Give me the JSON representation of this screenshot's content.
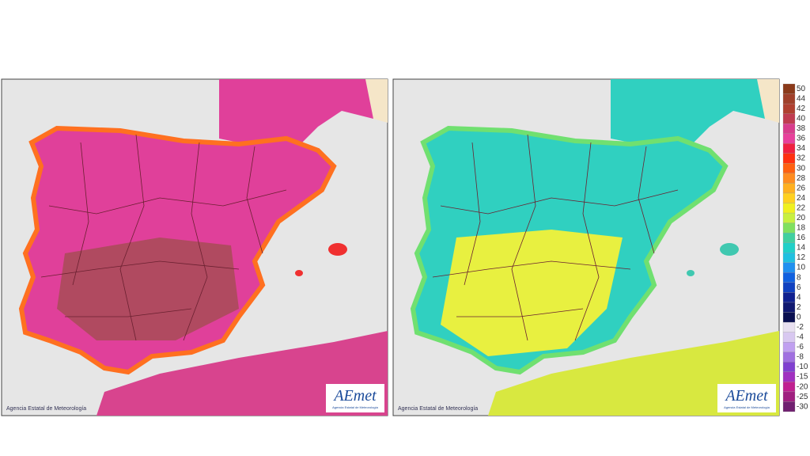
{
  "maps": [
    {
      "credit": "Agencia Estatal de Meteorología",
      "logo": "AEmet",
      "logo_subtitle": "Agencia Estatal de Meteorología"
    },
    {
      "credit": "Agencia Estatal de Meteorología",
      "logo": "AEmet",
      "logo_subtitle": "Agencia Estatal de Meteorología"
    }
  ],
  "legend": {
    "labels": [
      50,
      44,
      42,
      40,
      38,
      36,
      34,
      32,
      30,
      28,
      26,
      24,
      22,
      20,
      18,
      16,
      14,
      12,
      10,
      8,
      6,
      4,
      2,
      0,
      -2,
      -4,
      -6,
      -8,
      -10,
      -15,
      -20,
      -25,
      -30
    ],
    "colors": [
      "#8b3a1a",
      "#a0402a",
      "#b04030",
      "#c03c50",
      "#d83c8c",
      "#e8409c",
      "#f02040",
      "#ff3010",
      "#ff6010",
      "#ff8c20",
      "#ffb020",
      "#ffd020",
      "#f0f020",
      "#c8f040",
      "#80e060",
      "#40d0a0",
      "#20d0c8",
      "#20c0e0",
      "#2090f0",
      "#1060e0",
      "#1040c0",
      "#102090",
      "#101870",
      "#0a1050",
      "#e8e0f0",
      "#d8c8f0",
      "#c0a0f0",
      "#a070e0",
      "#8040d0",
      "#a030c0",
      "#c02090",
      "#a02080",
      "#702070"
    ]
  }
}
